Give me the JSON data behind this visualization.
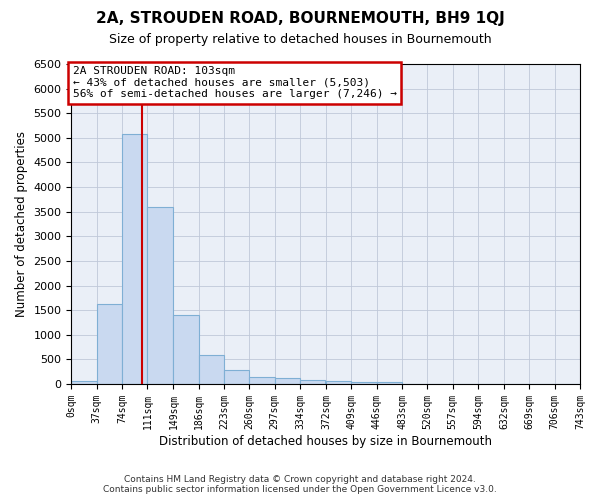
{
  "title": "2A, STROUDEN ROAD, BOURNEMOUTH, BH9 1QJ",
  "subtitle": "Size of property relative to detached houses in Bournemouth",
  "xlabel": "Distribution of detached houses by size in Bournemouth",
  "ylabel": "Number of detached properties",
  "footer_line1": "Contains HM Land Registry data © Crown copyright and database right 2024.",
  "footer_line2": "Contains public sector information licensed under the Open Government Licence v3.0.",
  "annotation_line1": "2A STROUDEN ROAD: 103sqm",
  "annotation_line2": "← 43% of detached houses are smaller (5,503)",
  "annotation_line3": "56% of semi-detached houses are larger (7,246) →",
  "property_size": 103,
  "bin_edges": [
    0,
    37,
    74,
    111,
    149,
    186,
    223,
    260,
    297,
    334,
    372,
    409,
    446,
    483,
    520,
    557,
    594,
    632,
    669,
    706,
    743
  ],
  "bin_counts": [
    65,
    1620,
    5080,
    3600,
    1410,
    590,
    290,
    145,
    115,
    80,
    60,
    50,
    35,
    0,
    0,
    0,
    0,
    0,
    0,
    0
  ],
  "bar_color": "#c9d9f0",
  "bar_edge_color": "#7fafd4",
  "vline_color": "#cc0000",
  "vline_x": 103,
  "annotation_box_edgecolor": "#cc0000",
  "background_color": "#ffffff",
  "axes_bg_color": "#eaeff7",
  "grid_color": "#c0c8d8",
  "ylim": [
    0,
    6500
  ],
  "xlim": [
    0,
    743
  ],
  "yticks": [
    0,
    500,
    1000,
    1500,
    2000,
    2500,
    3000,
    3500,
    4000,
    4500,
    5000,
    5500,
    6000,
    6500
  ],
  "bin_width": 37
}
